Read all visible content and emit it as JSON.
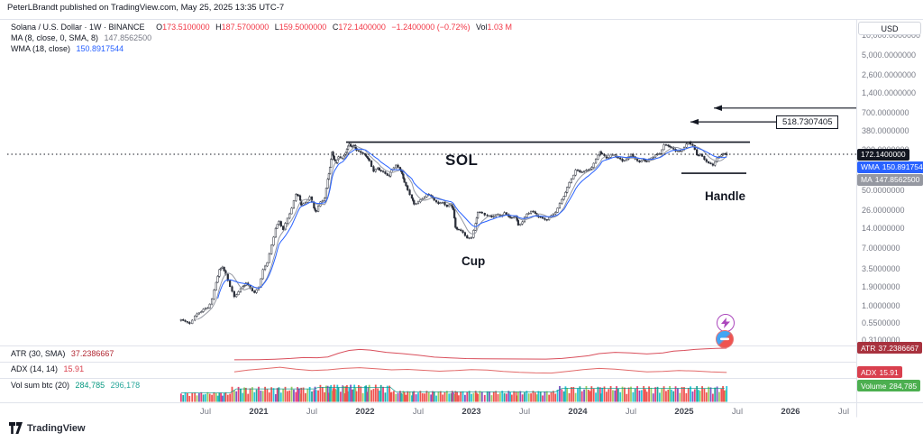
{
  "publish_bar": {
    "text": "PeterLBrandt published on TradingView.com, May 25, 2025 13:35 UTC-7"
  },
  "symbol_line": {
    "title": "Solana / U.S. Dollar · 1W · BINANCE",
    "o_label": "O",
    "o_value": "173.5100000",
    "h_label": "H",
    "h_value": "187.5700000",
    "l_label": "L",
    "l_value": "159.5000000",
    "c_label": "C",
    "c_value": "172.1400000",
    "change": "−1.2400000 (−0.72%)",
    "vol_label": "Vol",
    "vol_value": "1.03 M"
  },
  "indicators": {
    "ma": {
      "label": "MA (8, close, 0, SMA, 8)",
      "value": "147.8562500"
    },
    "wma": {
      "label": "WMA (18, close)",
      "value": "150.8917544"
    },
    "atr": {
      "label": "ATR (30, SMA)",
      "value": "37.2386667"
    },
    "adx": {
      "label": "ADX (14, 14)",
      "value": "15.91"
    },
    "vol": {
      "label": "Vol sum btc (20)",
      "value1": "284,785",
      "value2": "296,178"
    }
  },
  "annotations": {
    "sol": "SOL",
    "cup": "Cup",
    "handle": "Handle",
    "target_label": "518.7307405"
  },
  "price_scale": {
    "currency_button": "USD",
    "badges": {
      "price": {
        "label": "",
        "value": "172.1400000",
        "bg": "#131722"
      },
      "wma": {
        "label": "WMA",
        "value": "150.8917544",
        "bg": "#2962ff"
      },
      "ma": {
        "label": "MA",
        "value": "147.8562500",
        "bg": "#9598a1"
      },
      "atr": {
        "label": "ATR",
        "value": "37.2386667",
        "bg": "#a8323e"
      },
      "adx": {
        "label": "ADX",
        "value": "15.91",
        "bg": "#d9404e"
      },
      "volume": {
        "label": "Volume",
        "value": "284,785",
        "bg": "#4caf50"
      }
    }
  },
  "watermark": {
    "text": "TradingView"
  },
  "colors": {
    "down_red": "#f23645",
    "wma_blue": "#2962ff",
    "ma_gray": "#9598a1",
    "atr_red": "#d94f5c",
    "adx_red": "#e26a6a",
    "vol_green": "#089981"
  },
  "chart_data": {
    "type": "candlestick",
    "symbol": "Solana / U.S. Dollar",
    "interval": "1W",
    "exchange": "BINANCE",
    "scale": "logarithmic",
    "current_bar": {
      "open": 173.51,
      "high": 187.57,
      "low": 159.5,
      "close": 172.14,
      "change": -1.24,
      "change_pct": -0.72,
      "volume": "1.03 M"
    },
    "overlays": {
      "ma8": 147.85625,
      "wma18": 150.8917544
    },
    "price_lines": {
      "last_close": 172.14,
      "cup_rim": 260,
      "handle_support": 90,
      "upper_target": 830,
      "measured_target": 518.7307405
    },
    "y_ticks": [
      {
        "label": "10,000.0000000",
        "price": 10000
      },
      {
        "label": "5,000.0000000",
        "price": 5000
      },
      {
        "label": "2,600.0000000",
        "price": 2600
      },
      {
        "label": "1,400.0000000",
        "price": 1400
      },
      {
        "label": "700.0000000",
        "price": 700
      },
      {
        "label": "380.0000000",
        "price": 380
      },
      {
        "label": "200.0000000",
        "price": 200
      },
      {
        "label": "50.0000000",
        "price": 50
      },
      {
        "label": "26.0000000",
        "price": 26
      },
      {
        "label": "14.0000000",
        "price": 14
      },
      {
        "label": "7.0000000",
        "price": 7
      },
      {
        "label": "3.5000000",
        "price": 3.5
      },
      {
        "label": "1.9000000",
        "price": 1.9
      },
      {
        "label": "1.0000000",
        "price": 1.0
      },
      {
        "label": "0.5500000",
        "price": 0.55
      },
      {
        "label": "0.3100000",
        "price": 0.31
      }
    ],
    "x_labels": [
      {
        "text": "Jul",
        "t": 2020.5
      },
      {
        "text": "2021",
        "t": 2021
      },
      {
        "text": "Jul",
        "t": 2021.5
      },
      {
        "text": "2022",
        "t": 2022
      },
      {
        "text": "Jul",
        "t": 2022.5
      },
      {
        "text": "2023",
        "t": 2023
      },
      {
        "text": "Jul",
        "t": 2023.5
      },
      {
        "text": "2024",
        "t": 2024
      },
      {
        "text": "Jul",
        "t": 2024.5
      },
      {
        "text": "2025",
        "t": 2025
      },
      {
        "text": "Jul",
        "t": 2025.5
      },
      {
        "text": "2026",
        "t": 2026
      },
      {
        "text": "Jul",
        "t": 2026.5
      }
    ],
    "weekly_close_anchors": [
      [
        2020.27,
        0.62
      ],
      [
        2020.31,
        0.58
      ],
      [
        2020.35,
        0.54
      ],
      [
        2020.4,
        0.7
      ],
      [
        2020.44,
        0.78
      ],
      [
        2020.48,
        0.88
      ],
      [
        2020.52,
        0.92
      ],
      [
        2020.56,
        1.25
      ],
      [
        2020.6,
        2.2
      ],
      [
        2020.63,
        3.4
      ],
      [
        2020.66,
        3.7
      ],
      [
        2020.69,
        2.9
      ],
      [
        2020.73,
        1.9
      ],
      [
        2020.77,
        1.35
      ],
      [
        2020.81,
        1.6
      ],
      [
        2020.85,
        1.9
      ],
      [
        2020.88,
        2.15
      ],
      [
        2020.92,
        1.8
      ],
      [
        2020.96,
        1.55
      ],
      [
        2021.0,
        1.85
      ],
      [
        2021.04,
        3.4
      ],
      [
        2021.08,
        4.3
      ],
      [
        2021.12,
        7.8
      ],
      [
        2021.16,
        13.8
      ],
      [
        2021.19,
        17.5
      ],
      [
        2021.23,
        13.2
      ],
      [
        2021.27,
        19.5
      ],
      [
        2021.31,
        27.5
      ],
      [
        2021.35,
        44.0
      ],
      [
        2021.38,
        42.0
      ],
      [
        2021.4,
        30.5
      ],
      [
        2021.44,
        33.5
      ],
      [
        2021.48,
        40.5
      ],
      [
        2021.52,
        27.5
      ],
      [
        2021.54,
        24.5
      ],
      [
        2021.58,
        34.0
      ],
      [
        2021.62,
        38.5
      ],
      [
        2021.65,
        74.0
      ],
      [
        2021.67,
        110.0
      ],
      [
        2021.69,
        186.0
      ],
      [
        2021.71,
        143.0
      ],
      [
        2021.73,
        129.0
      ],
      [
        2021.75,
        158.0
      ],
      [
        2021.79,
        149.0
      ],
      [
        2021.81,
        171.0
      ],
      [
        2021.83,
        204.0
      ],
      [
        2021.85,
        243.0
      ],
      [
        2021.88,
        221.0
      ],
      [
        2021.9,
        233.0
      ],
      [
        2021.92,
        196.0
      ],
      [
        2021.96,
        182.0
      ],
      [
        2022.0,
        170.0
      ],
      [
        2022.02,
        153.0
      ],
      [
        2022.04,
        138.0
      ],
      [
        2022.08,
        96.0
      ],
      [
        2022.12,
        108.0
      ],
      [
        2022.15,
        97.0
      ],
      [
        2022.19,
        89.0
      ],
      [
        2022.23,
        82.0
      ],
      [
        2022.25,
        101.0
      ],
      [
        2022.29,
        119.0
      ],
      [
        2022.33,
        102.0
      ],
      [
        2022.35,
        88.0
      ],
      [
        2022.37,
        66.0
      ],
      [
        2022.4,
        51.0
      ],
      [
        2022.44,
        38.5
      ],
      [
        2022.46,
        31.5
      ],
      [
        2022.5,
        34.0
      ],
      [
        2022.54,
        38.0
      ],
      [
        2022.58,
        44.0
      ],
      [
        2022.62,
        41.5
      ],
      [
        2022.65,
        36.0
      ],
      [
        2022.69,
        32.0
      ],
      [
        2022.73,
        33.5
      ],
      [
        2022.77,
        29.0
      ],
      [
        2022.81,
        31.5
      ],
      [
        2022.83,
        26.0
      ],
      [
        2022.85,
        14.2
      ],
      [
        2022.88,
        13.2
      ],
      [
        2022.92,
        12.0
      ],
      [
        2022.96,
        9.9
      ],
      [
        2023.0,
        10.1
      ],
      [
        2023.04,
        16.4
      ],
      [
        2023.06,
        24.0
      ],
      [
        2023.1,
        23.2
      ],
      [
        2023.15,
        21.2
      ],
      [
        2023.19,
        20.3
      ],
      [
        2023.23,
        22.2
      ],
      [
        2023.27,
        20.9
      ],
      [
        2023.31,
        23.6
      ],
      [
        2023.35,
        20.6
      ],
      [
        2023.38,
        19.6
      ],
      [
        2023.42,
        20.9
      ],
      [
        2023.44,
        15.4
      ],
      [
        2023.48,
        17.3
      ],
      [
        2023.52,
        22.6
      ],
      [
        2023.56,
        24.8
      ],
      [
        2023.6,
        23.0
      ],
      [
        2023.63,
        20.4
      ],
      [
        2023.67,
        19.4
      ],
      [
        2023.71,
        18.4
      ],
      [
        2023.75,
        21.4
      ],
      [
        2023.79,
        23.8
      ],
      [
        2023.83,
        32.4
      ],
      [
        2023.87,
        41.0
      ],
      [
        2023.9,
        56.0
      ],
      [
        2023.94,
        74.0
      ],
      [
        2023.98,
        101.0
      ],
      [
        2024.02,
        94.0
      ],
      [
        2024.06,
        97.0
      ],
      [
        2024.1,
        101.0
      ],
      [
        2024.13,
        110.0
      ],
      [
        2024.17,
        146.0
      ],
      [
        2024.21,
        188.0
      ],
      [
        2024.23,
        172.0
      ],
      [
        2024.27,
        151.0
      ],
      [
        2024.31,
        168.0
      ],
      [
        2024.35,
        164.0
      ],
      [
        2024.38,
        152.0
      ],
      [
        2024.42,
        136.0
      ],
      [
        2024.46,
        147.0
      ],
      [
        2024.5,
        172.0
      ],
      [
        2024.54,
        146.0
      ],
      [
        2024.58,
        132.0
      ],
      [
        2024.62,
        144.0
      ],
      [
        2024.65,
        134.0
      ],
      [
        2024.69,
        152.0
      ],
      [
        2024.73,
        168.0
      ],
      [
        2024.77,
        176.0
      ],
      [
        2024.81,
        238.0
      ],
      [
        2024.85,
        228.0
      ],
      [
        2024.88,
        218.0
      ],
      [
        2024.92,
        192.0
      ],
      [
        2024.96,
        190.0
      ],
      [
        2025.0,
        218.0
      ],
      [
        2025.04,
        262.0
      ],
      [
        2025.08,
        232.0
      ],
      [
        2025.12,
        168.0
      ],
      [
        2025.15,
        172.0
      ],
      [
        2025.19,
        144.0
      ],
      [
        2025.23,
        128.0
      ],
      [
        2025.27,
        118.0
      ],
      [
        2025.31,
        152.0
      ],
      [
        2025.35,
        168.0
      ],
      [
        2025.38,
        176.0
      ],
      [
        2025.4,
        172.14
      ]
    ],
    "panels": [
      {
        "name": "ATR",
        "type": "line",
        "color": "#d94f5c",
        "current": 37.2386667,
        "max": 40,
        "points": [
          [
            2020.77,
            0.3
          ],
          [
            2021.0,
            0.8
          ],
          [
            2021.15,
            2.2
          ],
          [
            2021.3,
            4.5
          ],
          [
            2021.42,
            7.5
          ],
          [
            2021.55,
            7.0
          ],
          [
            2021.65,
            9.5
          ],
          [
            2021.75,
            21
          ],
          [
            2021.85,
            30
          ],
          [
            2021.95,
            33
          ],
          [
            2022.05,
            31
          ],
          [
            2022.2,
            24
          ],
          [
            2022.35,
            20
          ],
          [
            2022.5,
            15
          ],
          [
            2022.65,
            9
          ],
          [
            2022.8,
            6.5
          ],
          [
            2022.95,
            4.2
          ],
          [
            2023.1,
            3.8
          ],
          [
            2023.3,
            3.0
          ],
          [
            2023.5,
            2.8
          ],
          [
            2023.7,
            2.6
          ],
          [
            2023.85,
            4.5
          ],
          [
            2023.98,
            9
          ],
          [
            2024.1,
            13
          ],
          [
            2024.2,
            20
          ],
          [
            2024.35,
            24
          ],
          [
            2024.5,
            22
          ],
          [
            2024.65,
            19
          ],
          [
            2024.8,
            22
          ],
          [
            2024.9,
            28
          ],
          [
            2025.0,
            30
          ],
          [
            2025.1,
            33
          ],
          [
            2025.2,
            35
          ],
          [
            2025.3,
            36.5
          ],
          [
            2025.4,
            37.24
          ]
        ]
      },
      {
        "name": "ADX",
        "type": "line",
        "color": "#e26a6a",
        "current": 15.91,
        "max": 50,
        "points": [
          [
            2020.77,
            18
          ],
          [
            2020.9,
            26
          ],
          [
            2021.05,
            32
          ],
          [
            2021.2,
            38
          ],
          [
            2021.35,
            30
          ],
          [
            2021.5,
            24
          ],
          [
            2021.65,
            27
          ],
          [
            2021.8,
            33
          ],
          [
            2021.95,
            36
          ],
          [
            2022.1,
            32
          ],
          [
            2022.25,
            27
          ],
          [
            2022.4,
            29
          ],
          [
            2022.55,
            25
          ],
          [
            2022.7,
            21
          ],
          [
            2022.85,
            24
          ],
          [
            2023.0,
            28
          ],
          [
            2023.15,
            26
          ],
          [
            2023.3,
            20
          ],
          [
            2023.45,
            16
          ],
          [
            2023.6,
            14
          ],
          [
            2023.75,
            13
          ],
          [
            2023.9,
            20
          ],
          [
            2024.05,
            28
          ],
          [
            2024.2,
            33
          ],
          [
            2024.35,
            30
          ],
          [
            2024.5,
            24
          ],
          [
            2024.65,
            18
          ],
          [
            2024.8,
            20
          ],
          [
            2024.95,
            24
          ],
          [
            2025.1,
            22
          ],
          [
            2025.25,
            18
          ],
          [
            2025.4,
            15.91
          ]
        ]
      },
      {
        "name": "Volume",
        "type": "bar",
        "current": 284785,
        "ma": 296178,
        "palette": [
          "#ec407a",
          "#26a69a",
          "#7e57c2",
          "#26c6da",
          "#9ccc65",
          "#ef5350"
        ]
      }
    ]
  }
}
